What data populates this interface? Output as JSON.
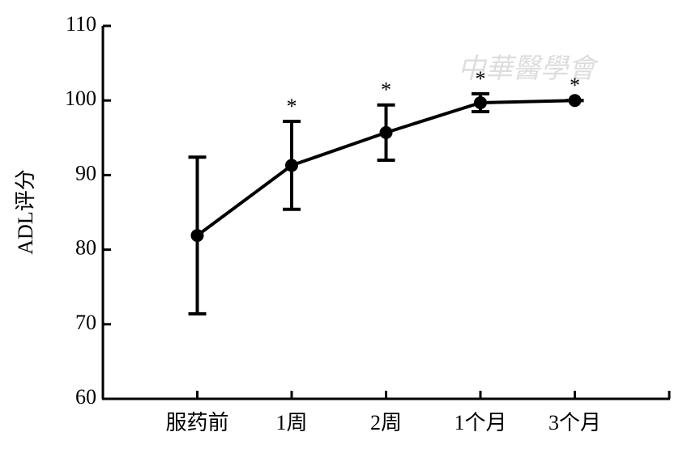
{
  "chart_data": {
    "type": "line",
    "y_label": "ADL评分",
    "watermark": "中華醫學會",
    "categories": [
      "服药前",
      "1周",
      "2周",
      "1个月",
      "3个月"
    ],
    "series": [
      {
        "color": "#000000",
        "values": [
          81.9,
          91.3,
          95.7,
          99.7,
          100.0
        ],
        "errors": [
          10.5,
          5.9,
          3.7,
          1.2,
          0
        ],
        "significance": [
          null,
          "*",
          "*",
          "*",
          "*"
        ]
      }
    ],
    "ylim": [
      60,
      110
    ],
    "yticks": [
      60,
      70,
      80,
      90,
      100,
      110
    ],
    "grid": false
  }
}
